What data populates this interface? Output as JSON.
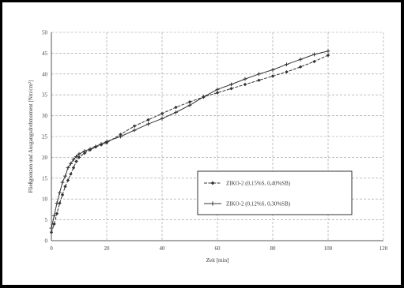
{
  "chart_data": {
    "type": "line",
    "xlabel": "Zeit [min]",
    "ylabel": "Fließgrenzen und Ausgangsdrehmoment [Nm/cm²]",
    "xlim": [
      0,
      120
    ],
    "ylim": [
      0,
      50
    ],
    "x_ticks": [
      0,
      20,
      40,
      60,
      80,
      100,
      120
    ],
    "y_ticks": [
      0,
      5,
      10,
      15,
      20,
      25,
      30,
      35,
      40,
      45,
      50
    ],
    "grid": true,
    "legend_position": "right-center",
    "series": [
      {
        "name": "ZIKO-2 (0,15%S, 0,40%SB)",
        "color": "#333333",
        "x": [
          0,
          1,
          2,
          3,
          4,
          5,
          6,
          7,
          8,
          9,
          10,
          12,
          14,
          16,
          18,
          20,
          25,
          30,
          35,
          40,
          45,
          50,
          55,
          60,
          65,
          70,
          75,
          80,
          85,
          90,
          95,
          100
        ],
        "y": [
          2,
          4,
          6.5,
          9,
          11,
          13,
          14.5,
          16,
          17.5,
          19,
          20,
          21,
          21.8,
          22.5,
          23,
          23.5,
          25.5,
          27.5,
          29,
          30.5,
          32,
          33.3,
          34.5,
          35.5,
          36.5,
          37.5,
          38.5,
          39.5,
          40.5,
          41.7,
          43,
          44.5
        ]
      },
      {
        "name": "ZIKO-2 (0,12%S, 0,30%SB)",
        "color": "#333333",
        "x": [
          0,
          1,
          2,
          3,
          4,
          5,
          6,
          7,
          8,
          9,
          10,
          12,
          14,
          16,
          18,
          20,
          25,
          30,
          35,
          40,
          45,
          50,
          55,
          60,
          65,
          70,
          75,
          80,
          85,
          90,
          95,
          100
        ],
        "y": [
          3,
          6,
          9,
          11.5,
          14,
          15.5,
          17.5,
          18.5,
          19.5,
          20.2,
          20.8,
          21.5,
          22,
          22.6,
          23.2,
          23.8,
          25,
          26.5,
          28,
          29.3,
          30.8,
          32.5,
          34.5,
          36.3,
          37.5,
          38.8,
          40,
          41,
          42.3,
          43.5,
          44.7,
          45.5
        ]
      }
    ]
  }
}
